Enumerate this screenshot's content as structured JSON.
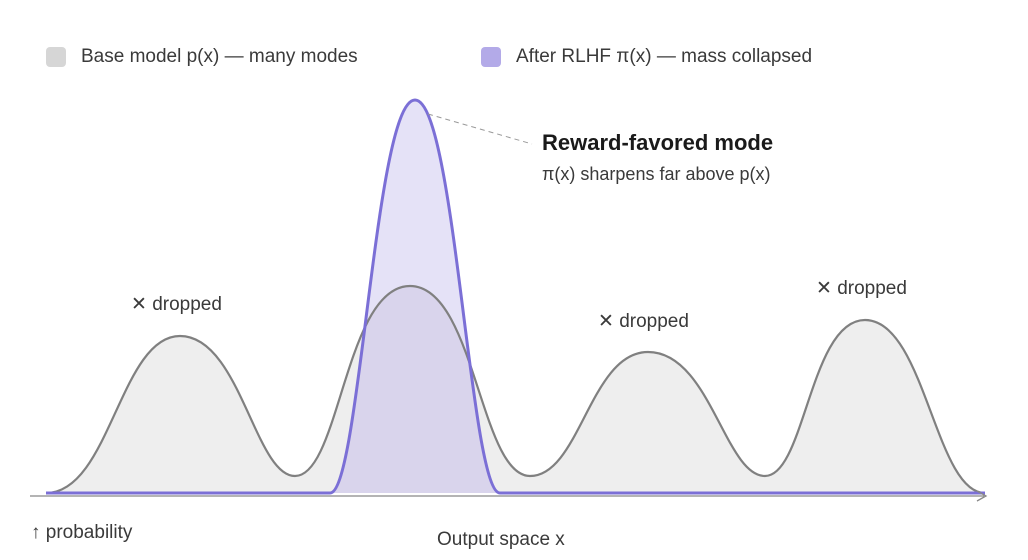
{
  "legend": {
    "base_label": "Base model p(x) — many modes",
    "base_color": "#d6d6d6",
    "rlhf_label": "After RLHF π(x) — mass collapsed",
    "rlhf_color": "#b3aae8"
  },
  "annotation": {
    "title": "Reward-favored mode",
    "subtitle": "π(x) sharpens far above p(x)"
  },
  "dropped_labels": [
    "✕ dropped",
    "✕ dropped",
    "✕ dropped"
  ],
  "axis": {
    "y_label": "↑ probability",
    "x_label": "Output space x"
  },
  "colors": {
    "base_line": "#808080",
    "base_fill": "#eeeeee",
    "rlhf_line": "#7b6fd6",
    "rlhf_fill": "#e5e2f7",
    "overlap_fill": "#d9d4ec",
    "axis": "#888888"
  }
}
